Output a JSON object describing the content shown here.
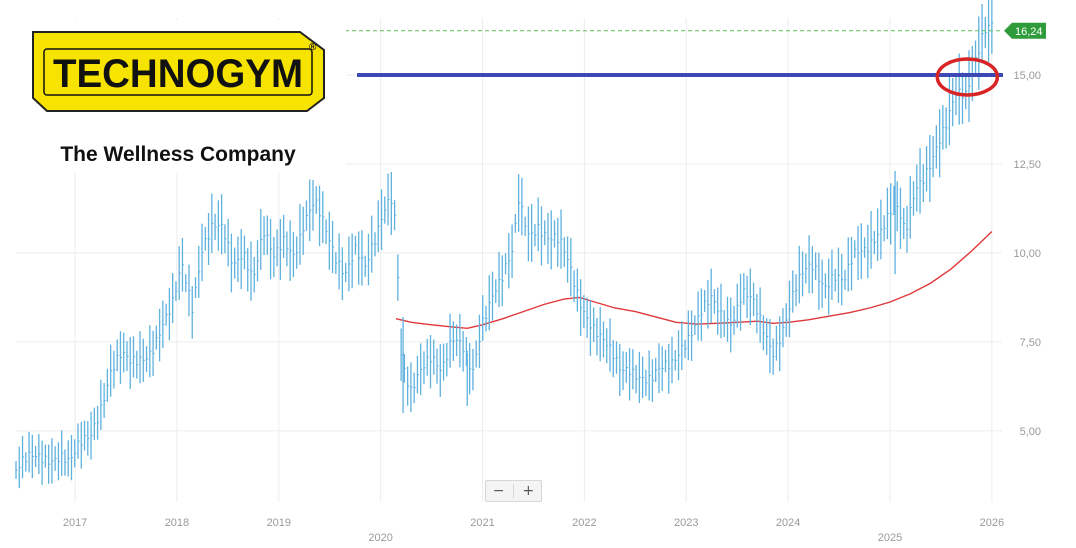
{
  "logo": {
    "brand": "TECHNOGYM",
    "registered_mark": "®",
    "tagline": "The Wellness Company"
  },
  "zoom": {
    "minus_label": "−",
    "plus_label": "+"
  },
  "colors": {
    "price": "#5fb1de",
    "moving_average": "#e0383a",
    "level_line": "#3c48b4",
    "target_line": "#5cc05c",
    "badge": "#2e9c3a",
    "highlight": "#d82424",
    "logo_yellow": "#f7e300"
  },
  "chart_data": {
    "type": "line",
    "x_scale": "time",
    "y_scale": "linear",
    "xlim": [
      2016.42,
      2026.08
    ],
    "ylim": [
      3.0,
      16.6
    ],
    "grid": true,
    "y_ticks": [
      {
        "value": 5.0,
        "label": "5,00"
      },
      {
        "value": 7.5,
        "label": "7,50"
      },
      {
        "value": 10.0,
        "label": "10,00"
      },
      {
        "value": 12.5,
        "label": "12,50"
      },
      {
        "value": 15.0,
        "label": "15,00"
      }
    ],
    "x_ticks": [
      {
        "value": 2017,
        "label": "2017",
        "row": 1
      },
      {
        "value": 2018,
        "label": "2018",
        "row": 1
      },
      {
        "value": 2019,
        "label": "2019",
        "row": 1
      },
      {
        "value": 2020,
        "label": "2020",
        "row": 2
      },
      {
        "value": 2021,
        "label": "2021",
        "row": 1
      },
      {
        "value": 2022,
        "label": "2022",
        "row": 1
      },
      {
        "value": 2023,
        "label": "2023",
        "row": 1
      },
      {
        "value": 2024,
        "label": "2024",
        "row": 1
      },
      {
        "value": 2025,
        "label": "2025",
        "row": 2
      },
      {
        "value": 2026,
        "label": "2026",
        "row": 1
      }
    ],
    "last_price": {
      "value": 16.24,
      "label": "16,24"
    },
    "horizontal_level": 15.0,
    "highlighted_point": {
      "x": 2025.72,
      "y": 15.0
    },
    "series": [
      {
        "kind": "price",
        "x": [
          2016.42,
          2016.55,
          2016.7,
          2016.85,
          2016.95,
          2017.05,
          2017.15,
          2017.25,
          2017.35,
          2017.45,
          2017.55,
          2017.65,
          2017.75,
          2017.85,
          2017.95,
          2018.05,
          2018.15,
          2018.25,
          2018.35,
          2018.45,
          2018.55,
          2018.65,
          2018.75,
          2018.85,
          2018.95,
          2019.05,
          2019.15,
          2019.25,
          2019.35,
          2019.45,
          2019.55,
          2019.65,
          2019.75,
          2019.85,
          2019.95,
          2020.03,
          2020.1,
          2020.15,
          2020.2,
          2020.25,
          2020.3,
          2020.4,
          2020.5,
          2020.6,
          2020.7,
          2020.8,
          2020.9,
          2021.0,
          2021.1,
          2021.2,
          2021.3,
          2021.35,
          2021.45,
          2021.55,
          2021.65,
          2021.75,
          2021.85,
          2021.95,
          2022.05,
          2022.15,
          2022.25,
          2022.35,
          2022.45,
          2022.55,
          2022.65,
          2022.75,
          2022.85,
          2022.95,
          2023.05,
          2023.15,
          2023.25,
          2023.35,
          2023.45,
          2023.55,
          2023.65,
          2023.75,
          2023.85,
          2023.95,
          2024.05,
          2024.15,
          2024.25,
          2024.35,
          2024.45,
          2024.55,
          2024.65,
          2024.75,
          2024.85,
          2024.95,
          2025.05,
          2025.15,
          2025.25,
          2025.35,
          2025.45,
          2025.55,
          2025.65,
          2025.75,
          2025.8,
          2025.85,
          2025.9,
          2025.95,
          2026.0
        ],
        "y": [
          3.9,
          4.1,
          4.3,
          4.4,
          4.0,
          4.5,
          4.9,
          5.8,
          6.7,
          7.0,
          6.8,
          7.1,
          7.4,
          7.9,
          8.3,
          9.6,
          8.6,
          10.3,
          10.7,
          10.5,
          9.6,
          10.2,
          9.4,
          10.5,
          9.7,
          10.4,
          10.1,
          10.9,
          11.3,
          10.6,
          10.0,
          9.6,
          10.1,
          9.4,
          10.3,
          11.3,
          11.8,
          10.9,
          7.2,
          6.4,
          5.9,
          6.6,
          7.2,
          6.9,
          7.6,
          7.2,
          6.5,
          8.2,
          9.0,
          9.3,
          9.9,
          11.4,
          10.6,
          10.9,
          10.4,
          10.2,
          9.6,
          8.8,
          8.2,
          7.6,
          7.1,
          6.7,
          6.9,
          6.6,
          6.3,
          6.6,
          6.9,
          7.5,
          7.8,
          8.2,
          8.6,
          8.3,
          8.2,
          8.9,
          8.5,
          7.8,
          7.3,
          8.0,
          8.8,
          9.3,
          9.6,
          9.2,
          9.5,
          9.1,
          9.8,
          10.1,
          10.6,
          10.9,
          11.3,
          10.4,
          11.9,
          12.4,
          12.9,
          13.4,
          14.4,
          14.6,
          15.2,
          15.7,
          16.1,
          16.3,
          16.24
        ]
      },
      {
        "kind": "moving_average",
        "x": [
          2020.15,
          2020.3,
          2020.5,
          2020.7,
          2020.85,
          2021.0,
          2021.2,
          2021.4,
          2021.6,
          2021.8,
          2021.95,
          2022.1,
          2022.3,
          2022.5,
          2022.7,
          2022.9,
          2023.1,
          2023.3,
          2023.5,
          2023.7,
          2023.85,
          2024.0,
          2024.2,
          2024.4,
          2024.6,
          2024.8,
          2025.0,
          2025.2,
          2025.4,
          2025.6,
          2025.8,
          2026.0
        ],
        "y": [
          8.15,
          8.05,
          7.98,
          7.92,
          7.88,
          7.98,
          8.15,
          8.35,
          8.55,
          8.7,
          8.75,
          8.62,
          8.45,
          8.35,
          8.2,
          8.05,
          8.0,
          8.02,
          8.05,
          8.08,
          8.02,
          8.05,
          8.12,
          8.22,
          8.32,
          8.45,
          8.62,
          8.85,
          9.15,
          9.55,
          10.05,
          10.6
        ]
      }
    ]
  }
}
